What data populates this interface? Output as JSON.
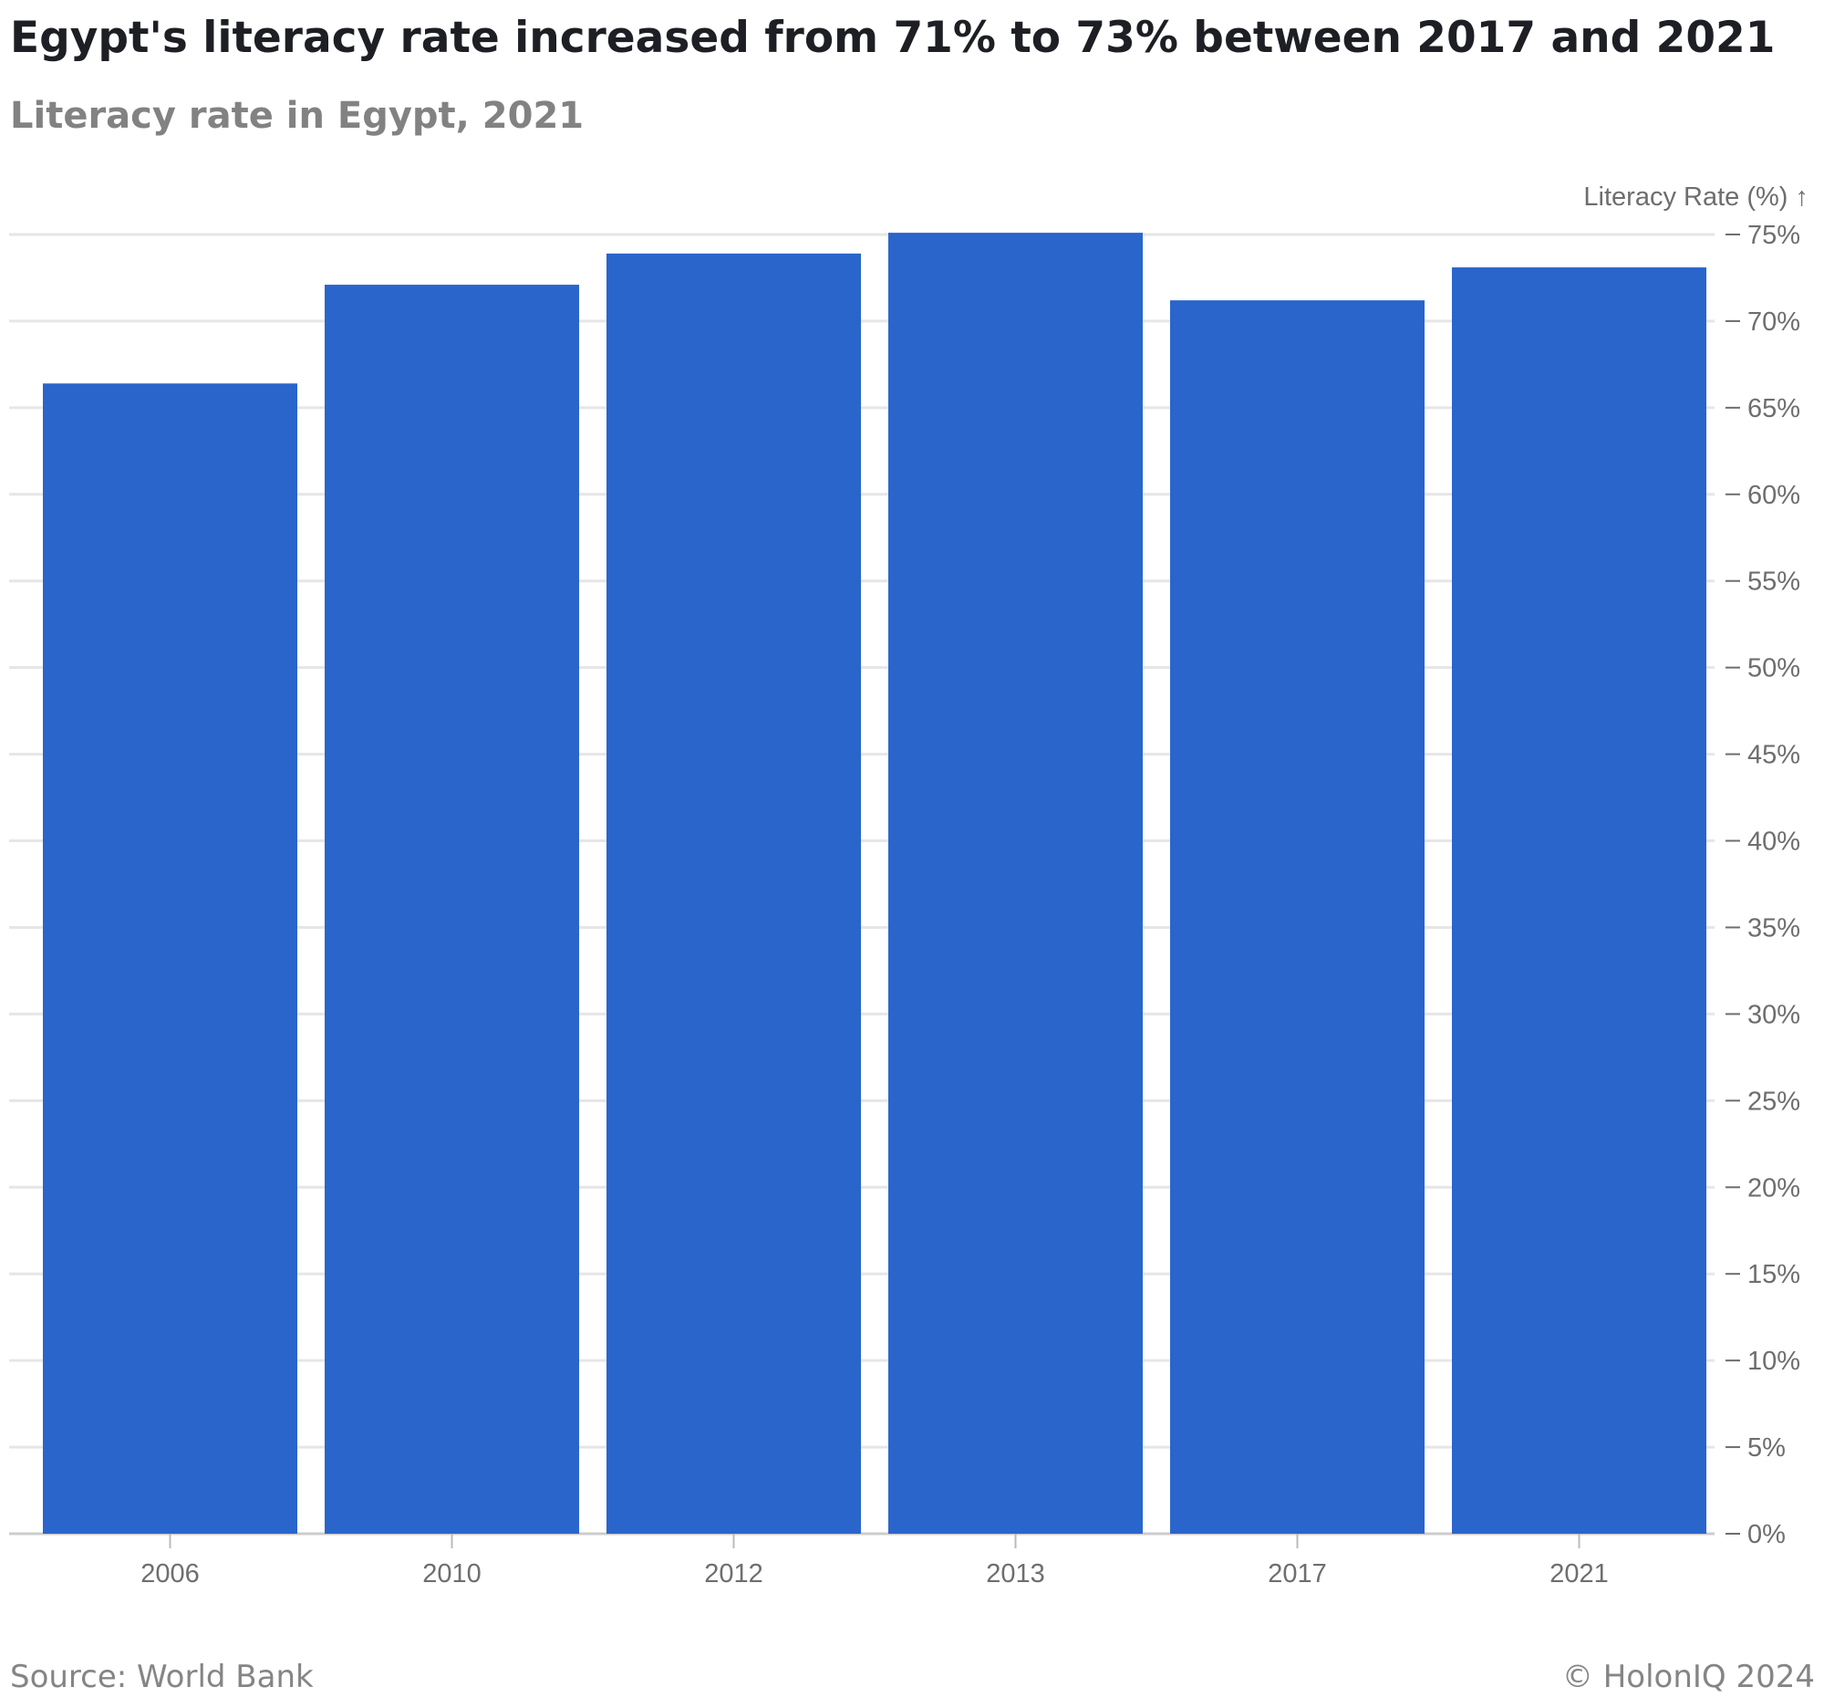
{
  "header": {
    "title": "Egypt's literacy rate increased from 71% to 73% between 2017 and 2021",
    "subtitle": "Literacy rate in Egypt, 2021"
  },
  "footer": {
    "source": "Source: World Bank",
    "copyright": "© HolonIQ 2024"
  },
  "colors": {
    "bar": "#2a65cc",
    "grid": "#e6e6e6",
    "axis_text": "#6e6e6e",
    "title": "#1d1f24",
    "subtitle": "#828282"
  },
  "chart_data": {
    "type": "bar",
    "title": "Egypt's literacy rate increased from 71% to 73% between 2017 and 2021",
    "subtitle": "Literacy rate in Egypt, 2021",
    "ylabel": "Literacy Rate (%) ↑",
    "xlabel": "",
    "categories": [
      "2006",
      "2010",
      "2012",
      "2013",
      "2017",
      "2021"
    ],
    "values": [
      66.4,
      72.1,
      73.9,
      75.1,
      71.2,
      73.1
    ],
    "ylim": [
      0,
      75
    ],
    "yticks": [
      0,
      5,
      10,
      15,
      20,
      25,
      30,
      35,
      40,
      45,
      50,
      55,
      60,
      65,
      70,
      75
    ],
    "ytick_labels": [
      "0%",
      "5%",
      "10%",
      "15%",
      "20%",
      "25%",
      "30%",
      "35%",
      "40%",
      "45%",
      "50%",
      "55%",
      "60%",
      "65%",
      "70%",
      "75%"
    ],
    "y_axis_side": "right",
    "grid": true,
    "legend": "none"
  }
}
